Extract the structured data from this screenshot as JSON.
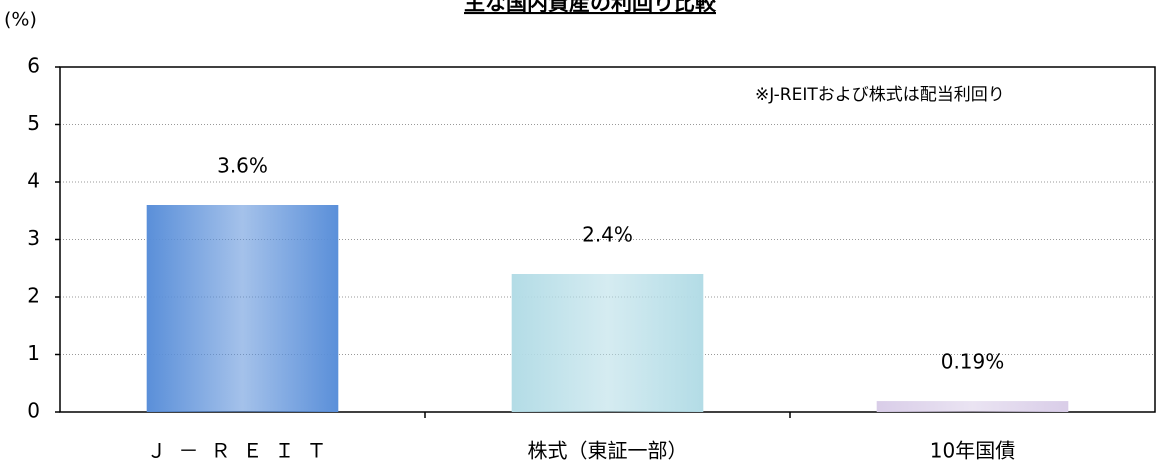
{
  "chart_data": {
    "type": "bar",
    "title": "主な国内資産の利回り比較",
    "y_axis_label": "(%)",
    "annotation": "※J-REITおよび株式は配当利回り",
    "categories": [
      "Ｊ－ＲＥＩＴ",
      "株式（東証一部）",
      "10年国債"
    ],
    "values": [
      3.6,
      2.4,
      0.19
    ],
    "value_labels": [
      "3.6%",
      "2.4%",
      "0.19%"
    ],
    "colors": [
      "#5a8fd9",
      "#b3dce6",
      "#d9cde8"
    ],
    "ylim": [
      0,
      6
    ],
    "yticks": [
      0,
      1,
      2,
      3,
      4,
      5,
      6
    ],
    "grid": true
  }
}
